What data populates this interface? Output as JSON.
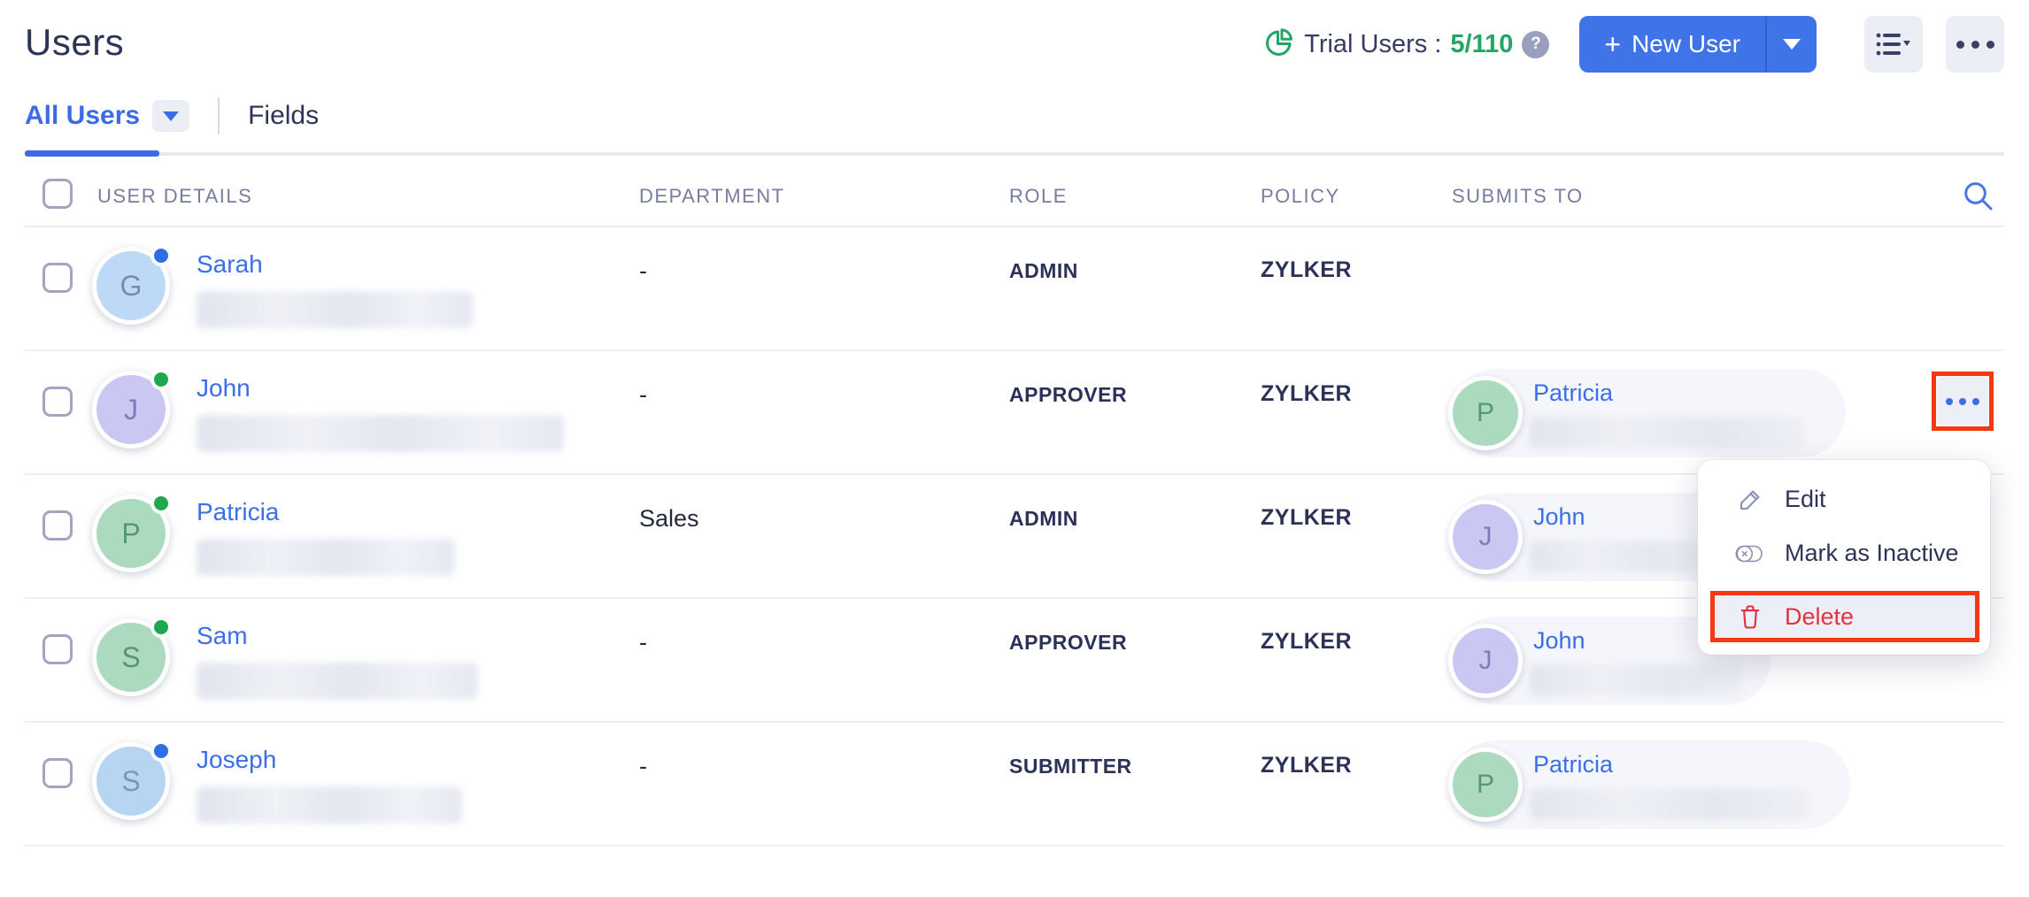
{
  "page": {
    "title": "Users"
  },
  "header": {
    "trial_label": "Trial Users :",
    "trial_count": "5/110",
    "help_glyph": "?",
    "new_user_label": "New User",
    "plus_glyph": "+",
    "accent_blue": "#3e74e8",
    "trial_green": "#23a566"
  },
  "tabs": {
    "active": "All Users",
    "other": "Fields"
  },
  "table": {
    "columns": [
      "USER DETAILS",
      "DEPARTMENT",
      "ROLE",
      "POLICY",
      "SUBMITS TO"
    ],
    "rows": [
      {
        "name": "Sarah",
        "initial": "G",
        "avatar_bg": "#bed9f5",
        "avatar_fg": "#7c89a9",
        "status_color": "#2e6fe6",
        "department": "-",
        "role": "ADMIN",
        "policy": "ZYLKER",
        "submits_to": null
      },
      {
        "name": "John",
        "initial": "J",
        "avatar_bg": "#cac7f3",
        "avatar_fg": "#837ab9",
        "status_color": "#1fa74f",
        "department": "-",
        "role": "APPROVER",
        "policy": "ZYLKER",
        "submits_to": {
          "name": "Patricia",
          "initial": "P",
          "avatar_bg": "#abdabe",
          "avatar_fg": "#55986f"
        },
        "actions_open": true
      },
      {
        "name": "Patricia",
        "initial": "P",
        "avatar_bg": "#abdabe",
        "avatar_fg": "#55986f",
        "status_color": "#1fa74f",
        "department": "Sales",
        "role": "ADMIN",
        "policy": "ZYLKER",
        "submits_to": {
          "name": "John",
          "initial": "J",
          "avatar_bg": "#cac7f3",
          "avatar_fg": "#837ab9"
        }
      },
      {
        "name": "Sam",
        "initial": "S",
        "avatar_bg": "#abdabe",
        "avatar_fg": "#55986f",
        "status_color": "#1fa74f",
        "department": "-",
        "role": "APPROVER",
        "policy": "ZYLKER",
        "submits_to": {
          "name": "John",
          "initial": "J",
          "avatar_bg": "#cac7f3",
          "avatar_fg": "#837ab9"
        }
      },
      {
        "name": "Joseph",
        "initial": "S",
        "avatar_bg": "#b7d5f1",
        "avatar_fg": "#7c96b8",
        "status_color": "#2e6fe6",
        "department": "-",
        "role": "SUBMITTER",
        "policy": "ZYLKER",
        "submits_to": {
          "name": "Patricia",
          "initial": "P",
          "avatar_bg": "#abdabe",
          "avatar_fg": "#55986f"
        }
      }
    ]
  },
  "context_menu": {
    "items": [
      {
        "label": "Edit",
        "icon": "pencil-icon",
        "danger": false
      },
      {
        "label": "Mark as Inactive",
        "icon": "toggle-inactive-icon",
        "danger": false
      },
      {
        "label": "Delete",
        "icon": "trash-icon",
        "danger": true
      }
    ]
  },
  "annotation_color": "#f5380f"
}
